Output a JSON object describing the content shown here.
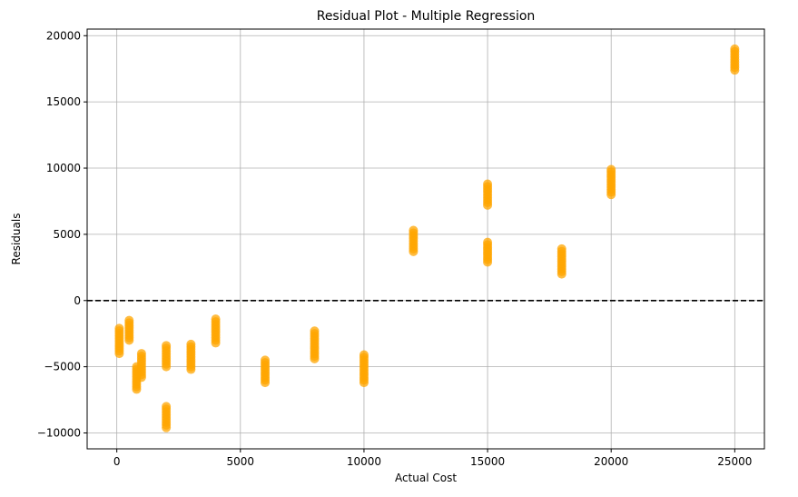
{
  "chart_data": {
    "type": "scatter",
    "title": "Residual Plot - Multiple Regression",
    "xlabel": "Actual Cost",
    "ylabel": "Residuals",
    "xlim": [
      -1200,
      26200
    ],
    "ylim": [
      -11200,
      20500
    ],
    "xticks": [
      0,
      5000,
      10000,
      15000,
      20000,
      25000
    ],
    "xtick_labels": [
      "0",
      "5000",
      "10000",
      "15000",
      "20000",
      "25000"
    ],
    "yticks": [
      -10000,
      -5000,
      0,
      5000,
      10000,
      15000,
      20000
    ],
    "ytick_labels": [
      "−10000",
      "−5000",
      "0",
      "5000",
      "10000",
      "15000",
      "20000"
    ],
    "grid": true,
    "reference_line": {
      "y": 0,
      "style": "dashed",
      "color": "#000000"
    },
    "point_color": "#FFA500",
    "point_alpha": 0.75,
    "clusters": [
      {
        "x": 100,
        "y_min": -4000,
        "y_max": -2100
      },
      {
        "x": 500,
        "y_min": -3000,
        "y_max": -1500
      },
      {
        "x": 800,
        "y_min": -6700,
        "y_max": -5000
      },
      {
        "x": 1000,
        "y_min": -5800,
        "y_max": -4000
      },
      {
        "x": 2000,
        "y_min": -9600,
        "y_max": -8000
      },
      {
        "x": 2000,
        "y_min": -5000,
        "y_max": -3400
      },
      {
        "x": 3000,
        "y_min": -5200,
        "y_max": -3300
      },
      {
        "x": 4000,
        "y_min": -3200,
        "y_max": -1400
      },
      {
        "x": 6000,
        "y_min": -6200,
        "y_max": -4500
      },
      {
        "x": 8000,
        "y_min": -4400,
        "y_max": -2300
      },
      {
        "x": 10000,
        "y_min": -6200,
        "y_max": -4100
      },
      {
        "x": 12000,
        "y_min": 3700,
        "y_max": 5300
      },
      {
        "x": 15000,
        "y_min": 7200,
        "y_max": 8800
      },
      {
        "x": 15000,
        "y_min": 2900,
        "y_max": 4400
      },
      {
        "x": 18000,
        "y_min": 2000,
        "y_max": 3900
      },
      {
        "x": 20000,
        "y_min": 8000,
        "y_max": 9900
      },
      {
        "x": 25000,
        "y_min": 17400,
        "y_max": 19000
      }
    ]
  }
}
